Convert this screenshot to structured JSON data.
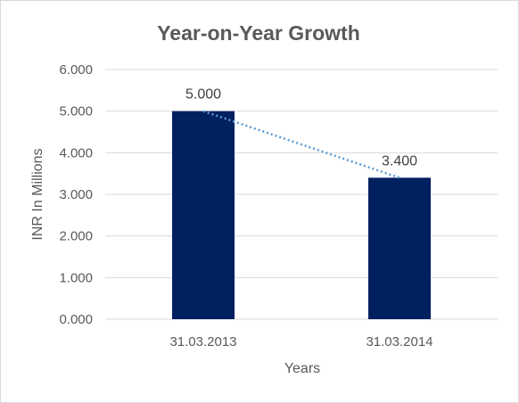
{
  "chart_data": {
    "type": "bar",
    "title": "Year-on-Year Growth",
    "xlabel": "Years",
    "ylabel": "INR In Millions",
    "categories": [
      "31.03.2013",
      "31.03.2014"
    ],
    "values": [
      5.0,
      3.4
    ],
    "data_labels": [
      "5.000",
      "3.400"
    ],
    "ylim": [
      0,
      6
    ],
    "y_ticks": [
      "0.000",
      "1.000",
      "2.000",
      "3.000",
      "4.000",
      "5.000",
      "6.000"
    ],
    "grid": true,
    "legend": "none",
    "trendline": "linear, dotted",
    "colors": {
      "bar": "#002060",
      "trendline": "#5b9bd5",
      "grid": "#d9d9d9"
    }
  }
}
